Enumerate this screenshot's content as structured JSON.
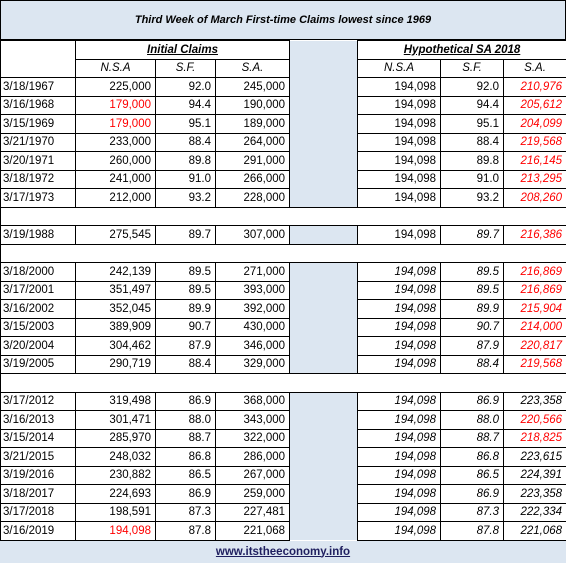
{
  "title": "Third Week of March First-time Claims lowest since 1969",
  "groups": [
    "Initial Claims",
    "Hypothetical SA 2018"
  ],
  "columns": [
    "N.S.A",
    "S.F.",
    "S.A.",
    "N.S.A",
    "S.F.",
    "S.A."
  ],
  "highlight_color": "#ff0000",
  "sections": [
    {
      "italic": [
        6
      ],
      "rows": [
        {
          "cells": [
            "3/18/1967",
            "225,000",
            "92.0",
            "245,000",
            "194,098",
            "92.0",
            "210,976"
          ],
          "red": [
            6
          ]
        },
        {
          "cells": [
            "3/16/1968",
            "179,000",
            "94.4",
            "190,000",
            "194,098",
            "94.4",
            "205,612"
          ],
          "red": [
            1,
            6
          ]
        },
        {
          "cells": [
            "3/15/1969",
            "179,000",
            "95.1",
            "189,000",
            "194,098",
            "95.1",
            "204,099"
          ],
          "red": [
            1,
            6
          ]
        },
        {
          "cells": [
            "3/21/1970",
            "233,000",
            "88.4",
            "264,000",
            "194,098",
            "88.4",
            "219,568"
          ],
          "red": [
            6
          ]
        },
        {
          "cells": [
            "3/20/1971",
            "260,000",
            "89.8",
            "291,000",
            "194,098",
            "89.8",
            "216,145"
          ],
          "red": [
            6
          ]
        },
        {
          "cells": [
            "3/18/1972",
            "241,000",
            "91.0",
            "266,000",
            "194,098",
            "91.0",
            "213,295"
          ],
          "red": [
            6
          ]
        },
        {
          "cells": [
            "3/17/1973",
            "212,000",
            "93.2",
            "228,000",
            "194,098",
            "93.2",
            "208,260"
          ],
          "red": [
            6
          ]
        }
      ]
    },
    {
      "italic": [
        5,
        6
      ],
      "rows": [
        {
          "cells": [
            "3/19/1988",
            "275,545",
            "89.7",
            "307,000",
            "194,098",
            "89.7",
            "216,386"
          ],
          "red": [
            6
          ]
        }
      ]
    },
    {
      "italic": [
        4,
        5,
        6
      ],
      "rows": [
        {
          "cells": [
            "3/18/2000",
            "242,139",
            "89.5",
            "271,000",
            "194,098",
            "89.5",
            "216,869"
          ],
          "red": [
            6
          ]
        },
        {
          "cells": [
            "3/17/2001",
            "351,497",
            "89.5",
            "393,000",
            "194,098",
            "89.5",
            "216,869"
          ],
          "red": [
            6
          ]
        },
        {
          "cells": [
            "3/16/2002",
            "352,045",
            "89.9",
            "392,000",
            "194,098",
            "89.9",
            "215,904"
          ],
          "red": [
            6
          ]
        },
        {
          "cells": [
            "3/15/2003",
            "389,909",
            "90.7",
            "430,000",
            "194,098",
            "90.7",
            "214,000"
          ],
          "red": [
            6
          ]
        },
        {
          "cells": [
            "3/20/2004",
            "304,462",
            "87.9",
            "346,000",
            "194,098",
            "87.9",
            "220,817"
          ],
          "red": [
            6
          ]
        },
        {
          "cells": [
            "3/19/2005",
            "290,719",
            "88.4",
            "329,000",
            "194,098",
            "88.4",
            "219,568"
          ],
          "red": [
            6
          ]
        }
      ]
    },
    {
      "italic": [
        4,
        5,
        6
      ],
      "rows": [
        {
          "cells": [
            "3/17/2012",
            "319,498",
            "86.9",
            "368,000",
            "194,098",
            "86.9",
            "223,358"
          ]
        },
        {
          "cells": [
            "3/16/2013",
            "301,471",
            "88.0",
            "343,000",
            "194,098",
            "88.0",
            "220,566"
          ],
          "red": [
            6
          ]
        },
        {
          "cells": [
            "3/15/2014",
            "285,970",
            "88.7",
            "322,000",
            "194,098",
            "88.7",
            "218,825"
          ],
          "red": [
            6
          ]
        },
        {
          "cells": [
            "3/21/2015",
            "248,032",
            "86.8",
            "286,000",
            "194,098",
            "86.8",
            "223,615"
          ]
        },
        {
          "cells": [
            "3/19/2016",
            "230,882",
            "86.5",
            "267,000",
            "194,098",
            "86.5",
            "224,391"
          ]
        },
        {
          "cells": [
            "3/18/2017",
            "224,693",
            "86.9",
            "259,000",
            "194,098",
            "86.9",
            "223,358"
          ]
        },
        {
          "cells": [
            "3/17/2018",
            "198,591",
            "87.3",
            "227,481",
            "194,098",
            "87.3",
            "222,334"
          ]
        },
        {
          "cells": [
            "3/16/2019",
            "194,098",
            "87.8",
            "221,068",
            "194,098",
            "87.8",
            "221,068"
          ],
          "red": [
            1
          ]
        }
      ]
    }
  ],
  "footer": "www.itstheeconomy.info"
}
